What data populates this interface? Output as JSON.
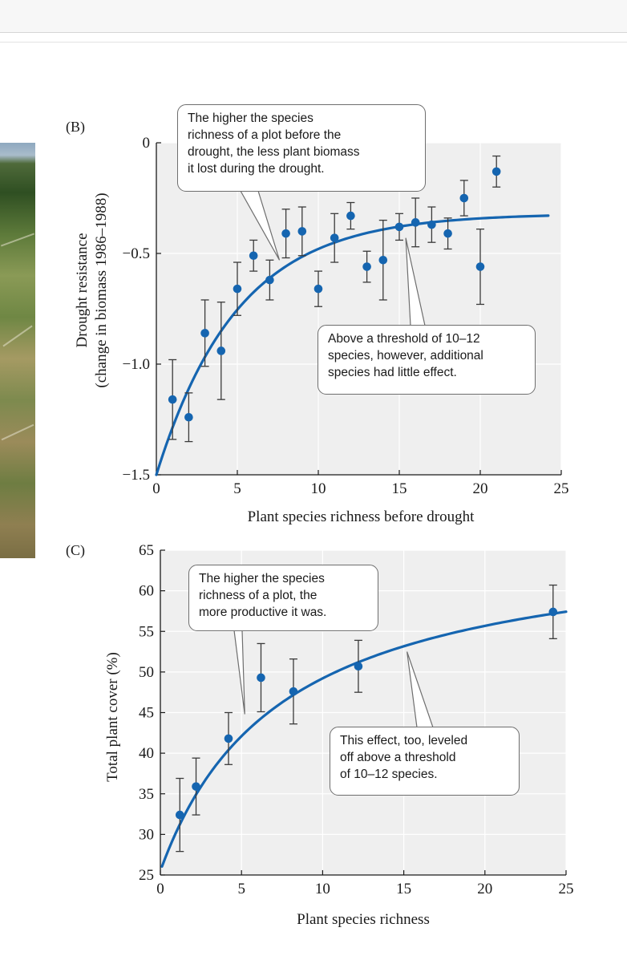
{
  "colors": {
    "series": "#1565b0",
    "plot_bg": "#efefef",
    "errorbar": "#3a3a3a",
    "grid": "#ffffff"
  },
  "chart_data": [
    {
      "type": "scatter",
      "panel_label": "(B)",
      "xlabel": "Plant species richness before drought",
      "ylabel_line1": "Drought resistance",
      "ylabel_line2": "(change in biomass 1986–1988)",
      "xlim": [
        0,
        25
      ],
      "ylim": [
        -1.5,
        0
      ],
      "x_ticks": [
        0,
        5,
        10,
        15,
        20,
        25
      ],
      "y_ticks": [
        0,
        -0.5,
        -1.0,
        -1.5
      ],
      "x_tick_labels": [
        "0",
        "5",
        "10",
        "15",
        "20",
        "25"
      ],
      "y_tick_labels": [
        "0",
        "−0.5",
        "−1.0",
        "−1.5"
      ],
      "grid": true,
      "points": [
        {
          "x": 1,
          "y": -1.16,
          "err": 0.18
        },
        {
          "x": 2,
          "y": -1.24,
          "err": 0.11
        },
        {
          "x": 3,
          "y": -0.86,
          "err": 0.15
        },
        {
          "x": 4,
          "y": -0.94,
          "err": 0.22
        },
        {
          "x": 5,
          "y": -0.66,
          "err": 0.12
        },
        {
          "x": 6,
          "y": -0.51,
          "err": 0.07
        },
        {
          "x": 7,
          "y": -0.62,
          "err": 0.09
        },
        {
          "x": 8,
          "y": -0.41,
          "err": 0.11
        },
        {
          "x": 9,
          "y": -0.4,
          "err": 0.11
        },
        {
          "x": 10,
          "y": -0.66,
          "err": 0.08
        },
        {
          "x": 11,
          "y": -0.43,
          "err": 0.11
        },
        {
          "x": 12,
          "y": -0.33,
          "err": 0.06
        },
        {
          "x": 13,
          "y": -0.56,
          "err": 0.07
        },
        {
          "x": 14,
          "y": -0.53,
          "err": 0.18
        },
        {
          "x": 15,
          "y": -0.38,
          "err": 0.06
        },
        {
          "x": 16,
          "y": -0.36,
          "err": 0.11
        },
        {
          "x": 17,
          "y": -0.37,
          "err": 0.08
        },
        {
          "x": 18,
          "y": -0.41,
          "err": 0.07
        },
        {
          "x": 19,
          "y": -0.25,
          "err": 0.08
        },
        {
          "x": 20,
          "y": -0.56,
          "err": 0.17
        },
        {
          "x": 21,
          "y": -0.13,
          "err": 0.07
        }
      ],
      "fit": {
        "model": "exponential",
        "asymptote": -0.32,
        "start": -1.5,
        "rate": 0.2,
        "x_range": [
          0,
          24.2
        ]
      },
      "annotations": [
        "The higher the species\nrichness of a plot before the\ndrought, the less plant biomass\nit lost during the drought.",
        "Above a threshold of 10–12\nspecies, however, additional\nspecies had little effect."
      ]
    },
    {
      "type": "scatter",
      "panel_label": "(C)",
      "xlabel": "Plant species richness",
      "ylabel": "Total plant cover (%)",
      "xlim": [
        0,
        25
      ],
      "ylim": [
        25,
        65
      ],
      "x_ticks": [
        0,
        5,
        10,
        15,
        20,
        25
      ],
      "y_ticks": [
        25,
        30,
        35,
        40,
        45,
        50,
        55,
        60,
        65
      ],
      "x_tick_labels": [
        "0",
        "5",
        "10",
        "15",
        "20",
        "25"
      ],
      "y_tick_labels": [
        "25",
        "30",
        "35",
        "40",
        "45",
        "50",
        "55",
        "60",
        "65"
      ],
      "grid": true,
      "points": [
        {
          "x": 1.2,
          "y": 32.4,
          "err": 4.5
        },
        {
          "x": 2.2,
          "y": 35.9,
          "err": 3.5
        },
        {
          "x": 4.2,
          "y": 41.8,
          "err": 3.2
        },
        {
          "x": 6.2,
          "y": 49.3,
          "err": 4.2
        },
        {
          "x": 8.2,
          "y": 47.6,
          "err": 4.0
        },
        {
          "x": 12.2,
          "y": 50.7,
          "err": 3.2
        },
        {
          "x": 24.2,
          "y": 57.4,
          "err": 3.3
        }
      ],
      "fit": {
        "model": "saturating",
        "intercept": 25.5,
        "max": 67,
        "half": 7.5,
        "x_range": [
          0.1,
          25
        ]
      },
      "annotations": [
        "The higher the species\nrichness of a plot, the\nmore productive it was.",
        "This effect, too, leveled\noff above a threshold\nof 10–12 species."
      ]
    }
  ]
}
